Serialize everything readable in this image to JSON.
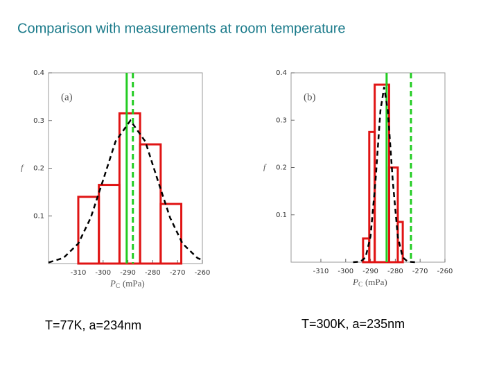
{
  "title": "Comparison with measurements at room temperature",
  "chart_data": [
    {
      "type": "histogram",
      "panel_label": "(a)",
      "caption": "T=77K,  a=234nm",
      "ylabel": "f",
      "xlabel_symbol": "P",
      "xlabel_subscript": "C",
      "xlabel_unit": "(mPa)",
      "bins": [
        -310,
        -301.7,
        -293.4,
        -285.1,
        -276.8,
        -268.5
      ],
      "values": [
        0.14,
        0.165,
        0.315,
        0.25,
        0.125
      ],
      "color": "#e01414",
      "curve": {
        "x": [
          -322,
          -316,
          -310,
          -305,
          -300,
          -295,
          -289,
          -283,
          -278,
          -273,
          -268,
          -262,
          -260
        ],
        "y": [
          0.0023,
          0.0117,
          0.042,
          0.096,
          0.175,
          0.256,
          0.3,
          0.256,
          0.175,
          0.096,
          0.042,
          0.0117,
          0.007
        ],
        "color": "#000000"
      },
      "vlines": [
        {
          "x": -290.5,
          "style": "solid",
          "color": "#22cc22"
        },
        {
          "x": -288,
          "style": "dashed",
          "color": "#22cc22"
        }
      ],
      "xlim": [
        -322,
        -260
      ],
      "ylim": [
        0,
        0.4
      ],
      "xticks": [
        -310,
        -300,
        -290,
        -280,
        -270,
        -260
      ],
      "yticks": [
        0.1,
        0.2,
        0.3,
        0.4
      ]
    },
    {
      "type": "histogram",
      "panel_label": "(b)",
      "caption": "T=300K,  a=235nm",
      "ylabel": "f",
      "xlabel_symbol": "P",
      "xlabel_subscript": "C",
      "xlabel_unit": "(mPa)",
      "bins": [
        -293,
        -290.5,
        -288.3,
        -282.5,
        -279,
        -277
      ],
      "values": [
        0.05,
        0.275,
        0.375,
        0.2,
        0.085
      ],
      "color": "#e01414",
      "curve": {
        "x": [
          -297,
          -294,
          -292,
          -290,
          -288,
          -286,
          -284.5,
          -283,
          -281,
          -279,
          -277,
          -275,
          -272
        ],
        "y": [
          0,
          0.0012,
          0.01,
          0.054,
          0.17,
          0.32,
          0.37,
          0.32,
          0.17,
          0.054,
          0.01,
          0.0012,
          0
        ],
        "color": "#000000"
      },
      "vlines": [
        {
          "x": -283.5,
          "style": "solid",
          "color": "#22cc22"
        },
        {
          "x": -273.7,
          "style": "dashed",
          "color": "#22cc22"
        }
      ],
      "xlim": [
        -322,
        -260
      ],
      "ylim": [
        0,
        0.4
      ],
      "xticks": [
        -310,
        -300,
        -290,
        -280,
        -270,
        -260
      ],
      "yticks": [
        0.1,
        0.2,
        0.3,
        0.4
      ]
    }
  ]
}
